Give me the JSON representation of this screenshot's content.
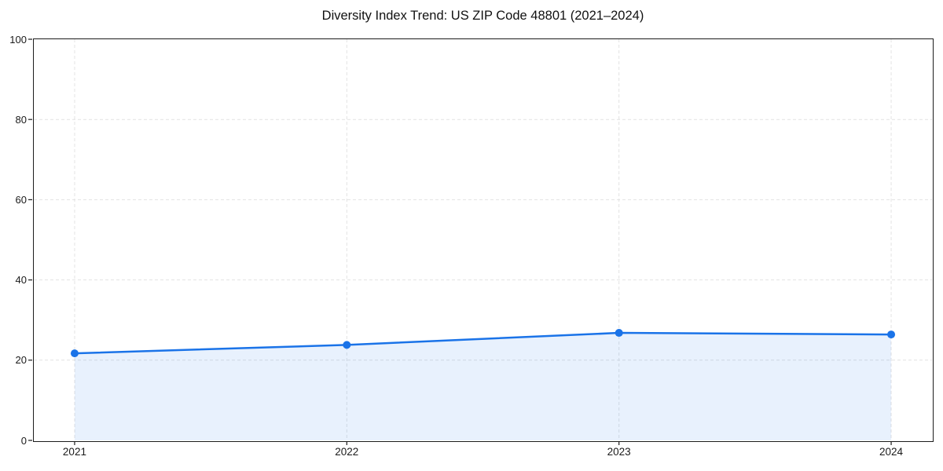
{
  "chart": {
    "title": "Diversity Index Trend: US ZIP Code 48801 (2021–2024)"
  },
  "chart_data": {
    "type": "line",
    "title": "Diversity Index Trend: US ZIP Code 48801 (2021–2024)",
    "x": [
      "2021",
      "2022",
      "2023",
      "2024"
    ],
    "series": [
      {
        "name": "Diversity Index",
        "values": [
          21.7,
          23.8,
          26.8,
          26.4
        ]
      }
    ],
    "xlabel": "",
    "ylabel": "",
    "ylim": [
      0,
      100
    ],
    "yticks": [
      0,
      20,
      40,
      60,
      80,
      100
    ],
    "grid": true,
    "grid_style": "dashed",
    "legend_position": "none",
    "marker": "circle",
    "area_fill": true,
    "colors": {
      "line": "#1a73e8",
      "marker": "#1a73e8",
      "fill": "rgba(26,115,232,0.10)",
      "grid": "#e2e2e2",
      "axis": "#1c1c1c",
      "text": "#1a1a1a",
      "background": "#ffffff"
    }
  }
}
